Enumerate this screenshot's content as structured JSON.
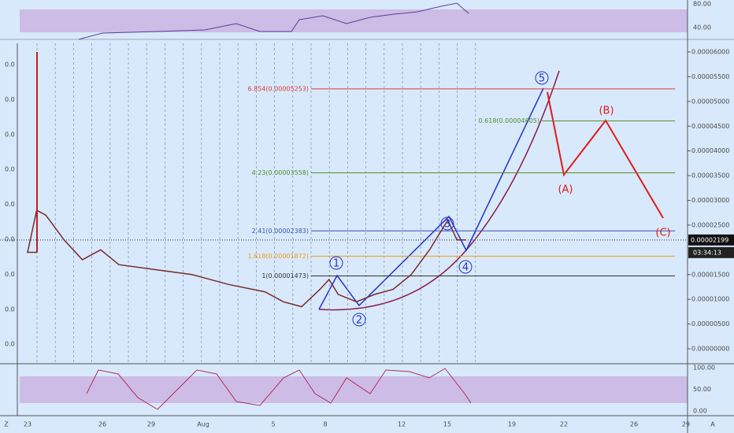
{
  "chart_data": {
    "type": "line",
    "x": [
      0,
      0.5,
      1,
      2,
      3,
      4,
      5,
      7,
      9,
      11,
      13,
      14,
      15,
      16,
      16.5,
      17,
      18,
      19,
      20,
      21,
      22,
      23,
      23.5,
      24
    ],
    "values": [
      1.95e-05,
      2.8e-05,
      2.7e-05,
      2.2e-05,
      1.8e-05,
      2e-05,
      1.7e-05,
      1.6e-05,
      1.5e-05,
      1.3e-05,
      1.15e-05,
      9.5e-06,
      8.5e-06,
      1.2e-05,
      1.4e-05,
      1.1e-05,
      9.5e-06,
      1.1e-05,
      1.2e-05,
      1.5e-05,
      2e-05,
      2.6e-05,
      2.2e-05,
      2.2e-05
    ],
    "color": "#7a2b2b",
    "ylim": [
      0,
      6e-05
    ],
    "yticks": [
      {
        "value": 6e-05,
        "label": "0.00006000"
      },
      {
        "value": 5.5e-05,
        "label": "0.00005500"
      },
      {
        "value": 5e-05,
        "label": "0.00005000"
      },
      {
        "value": 4.5e-05,
        "label": "0.00004500"
      },
      {
        "value": 4e-05,
        "label": "0.00004000"
      },
      {
        "value": 3.5e-05,
        "label": "0.00003500"
      },
      {
        "value": 3e-05,
        "label": "0.00003000"
      },
      {
        "value": 2.5e-05,
        "label": "0.00002500"
      },
      {
        "value": 1.5e-05,
        "label": "0.00001500"
      },
      {
        "value": 1e-05,
        "label": "0.00001000"
      },
      {
        "value": 5e-06,
        "label": "0.00000500"
      },
      {
        "value": 0,
        "label": "0.00000000"
      }
    ],
    "left_labels": [
      "0.0",
      "0.0",
      "0.0",
      "0.0",
      "0.0",
      "0.0",
      "0.0",
      "0.0",
      "0.0"
    ],
    "dates": [
      "Z",
      "23",
      "26",
      "29",
      "Aug",
      "5",
      "8",
      "12",
      "15",
      "19",
      "22",
      "26",
      "29",
      "A"
    ],
    "fib_levels": [
      {
        "value": 5.253e-05,
        "label": "6.854(0.00005253)",
        "color": "#e53935"
      },
      {
        "value": 4.605e-05,
        "label": "0.618(0.00004605)",
        "color": "#558b2f"
      },
      {
        "value": 3.558e-05,
        "label": "4.23(0.00003558)",
        "color": "#558b2f"
      },
      {
        "value": 2.383e-05,
        "label": "2.41(0.00002383)",
        "color": "#3f51b5"
      },
      {
        "value": 1.872e-05,
        "label": "1.618(0.00001872)",
        "color": "#f59b1a"
      },
      {
        "value": 1.473e-05,
        "label": "1(0.00001473)",
        "color": "#333333"
      }
    ],
    "current_price": {
      "value": 2.199e-05,
      "label": "0.00002199"
    },
    "countdown": "03:34:13",
    "waves": [
      "1",
      "2",
      "3",
      "4",
      "5",
      "(A)",
      "(B)",
      "(C)"
    ],
    "rsi_ticks": [
      {
        "value": 80,
        "label": "80.00"
      },
      {
        "value": 40,
        "label": "40.00"
      }
    ],
    "stoch_ticks": [
      {
        "value": 100,
        "label": "100.00"
      },
      {
        "value": 50,
        "label": "50.00"
      },
      {
        "value": 0,
        "label": "0.00"
      }
    ]
  }
}
